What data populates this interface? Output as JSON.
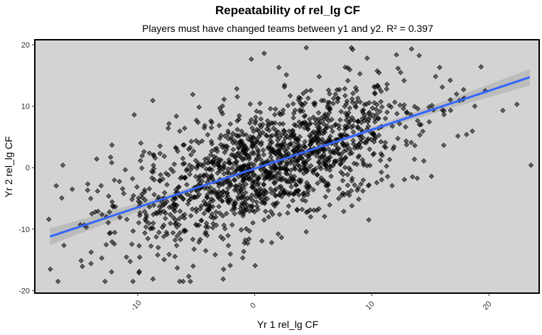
{
  "chart_data": {
    "type": "scatter",
    "title": "Repeatability of rel_lg CF",
    "subtitle": "Players must have changed teams between y1 and y2. R² = 0.397",
    "xlabel": "Yr 1 rel_lg CF",
    "ylabel": "Yr 2 rel_lg CF",
    "xlim": [
      -18.8,
      24.3
    ],
    "ylim": [
      -20.4,
      20.8
    ],
    "x_ticks": [
      -10,
      0,
      10,
      20
    ],
    "x_tick_labels": [
      "-10",
      "0",
      "10",
      "20"
    ],
    "y_ticks": [
      -20,
      -10,
      0,
      10,
      20
    ],
    "y_tick_labels": [
      "-20",
      "-10",
      "0",
      "10",
      "20"
    ],
    "grid": false,
    "colors": {
      "panel_bg": "#d3d3d3",
      "point": "#000000",
      "fit_line": "#3366ff",
      "confidence_band": "#a9a9a9"
    },
    "fit_line": {
      "x": [
        -17.5,
        23.5
      ],
      "y": [
        -11.2,
        14.7
      ]
    },
    "sampled_points": [
      [
        -17.6,
        -8.4
      ],
      [
        -16.4,
        0.4
      ],
      [
        -15.6,
        -3.5
      ],
      [
        -14.9,
        -9.3
      ],
      [
        -14.0,
        -15.6
      ],
      [
        -13.4,
        -7.1
      ],
      [
        -12.0,
        -12.4
      ],
      [
        -11.2,
        -4.2
      ],
      [
        -10.3,
        8.6
      ],
      [
        -9.9,
        -17.1
      ],
      [
        -8.7,
        -18.1
      ],
      [
        -8.1,
        2.3
      ],
      [
        -7.4,
        6.4
      ],
      [
        -6.0,
        -7.6
      ],
      [
        -5.3,
        11.9
      ],
      [
        -4.6,
        -3.1
      ],
      [
        -3.6,
        1.0
      ],
      [
        -2.7,
        -18.1
      ],
      [
        -2.1,
        -15.9
      ],
      [
        -1.4,
        3.2
      ],
      [
        -0.4,
        -6.3
      ],
      [
        0.3,
        2.1
      ],
      [
        0.8,
        18.6
      ],
      [
        1.6,
        6.4
      ],
      [
        2.1,
        -0.9
      ],
      [
        2.7,
        15.1
      ],
      [
        3.3,
        8.1
      ],
      [
        4.4,
        19.5
      ],
      [
        5.0,
        -3.6
      ],
      [
        5.5,
        14.8
      ],
      [
        6.2,
        3.8
      ],
      [
        7.1,
        11.3
      ],
      [
        8.3,
        -6.2
      ],
      [
        8.8,
        7.5
      ],
      [
        9.6,
        17.8
      ],
      [
        10.8,
        12.4
      ],
      [
        11.9,
        3.4
      ],
      [
        12.7,
        9.6
      ],
      [
        13.4,
        19.3
      ],
      [
        14.2,
        7.0
      ],
      [
        15.1,
        -1.4
      ],
      [
        15.8,
        16.3
      ],
      [
        16.7,
        14.2
      ],
      [
        17.9,
        11.3
      ],
      [
        18.8,
        10.0
      ],
      [
        19.7,
        12.5
      ],
      [
        21.2,
        9.3
      ],
      [
        22.4,
        10.3
      ],
      [
        23.6,
        0.4
      ]
    ]
  }
}
